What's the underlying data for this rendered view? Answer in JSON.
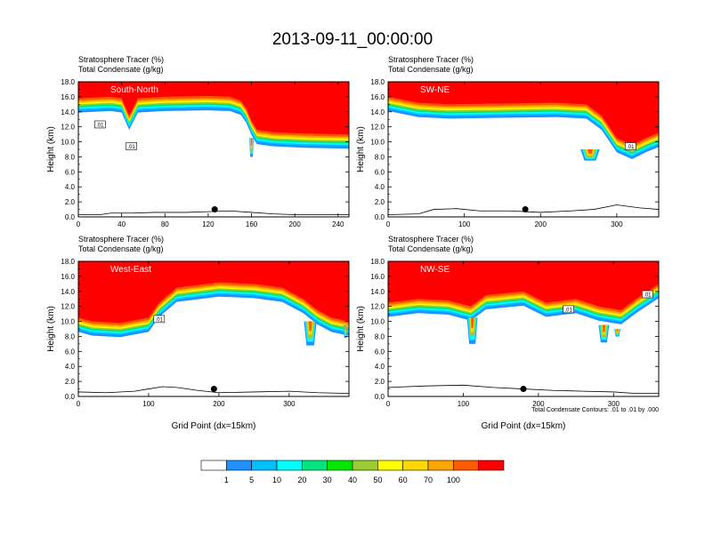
{
  "title": "2013-09-11_00:00:00",
  "colors": {
    "levels": [
      "#ffffff",
      "#1e90ff",
      "#00bfff",
      "#00ffff",
      "#00e57f",
      "#00e600",
      "#9acd32",
      "#ffff00",
      "#ffd700",
      "#ffa500",
      "#ff5a00",
      "#ff0000"
    ],
    "contour": "#000000",
    "terrain": "#000000"
  },
  "colorbar": {
    "labels": [
      "1",
      "5",
      "10",
      "20",
      "30",
      "40",
      "50",
      "60",
      "70",
      "100"
    ]
  },
  "contour_note": "Total Condensate Contours: .01 to .01 by .000",
  "chart_data": [
    {
      "type": "heatmap",
      "label": "South-North",
      "var_line1": "Stratosphere Tracer   (%)",
      "var_line2": "Total Condensate   (g/kg)",
      "ylabel": "Height (km)",
      "xlabel": "",
      "xlim": [
        0,
        250
      ],
      "ylim": [
        0,
        18
      ],
      "xticks": [
        "0",
        "40",
        "80",
        "120",
        "160",
        "200",
        "240"
      ],
      "xtick_values": [
        0,
        40,
        80,
        120,
        160,
        200,
        240
      ],
      "yticks": [
        "0.0",
        "2.0",
        "4.0",
        "6.0",
        "8.0",
        "10.0",
        "12.0",
        "14.0",
        "16.0",
        "18.0"
      ],
      "tropopause_km": [
        [
          0,
          14.8
        ],
        [
          30,
          15.0
        ],
        [
          40,
          14.8
        ],
        [
          47,
          12.5
        ],
        [
          55,
          14.8
        ],
        [
          80,
          15.0
        ],
        [
          120,
          15.1
        ],
        [
          140,
          15.0
        ],
        [
          150,
          14.5
        ],
        [
          155,
          13.5
        ],
        [
          160,
          11.8
        ],
        [
          165,
          10.6
        ],
        [
          180,
          10.3
        ],
        [
          210,
          10.1
        ],
        [
          250,
          10.0
        ]
      ],
      "streamers": [
        {
          "x": 160,
          "top": 10.5,
          "bottom": 8.0,
          "w": 4
        }
      ],
      "marker": {
        "x": 126,
        "y": 1.0
      },
      "terrain_km": [
        [
          0,
          0.3
        ],
        [
          20,
          0.3
        ],
        [
          30,
          0.5
        ],
        [
          50,
          0.5
        ],
        [
          70,
          0.6
        ],
        [
          100,
          0.6
        ],
        [
          120,
          0.7
        ],
        [
          140,
          0.8
        ],
        [
          160,
          0.6
        ],
        [
          180,
          0.4
        ],
        [
          200,
          0.3
        ],
        [
          250,
          0.3
        ]
      ],
      "contour_labels": [
        {
          "x": 20,
          "y": 12.2,
          "text": ".01"
        },
        {
          "x": 49,
          "y": 9.3,
          "text": ".01"
        }
      ]
    },
    {
      "type": "heatmap",
      "label": "SW-NE",
      "var_line1": "Stratosphere Tracer   (%)",
      "var_line2": "Total Condensate   (g/kg)",
      "ylabel": "Height (km)",
      "xlabel": "",
      "xlim": [
        0,
        355
      ],
      "ylim": [
        0,
        18
      ],
      "xticks": [
        "0",
        "100",
        "200",
        "300"
      ],
      "xtick_values": [
        0,
        100,
        200,
        300
      ],
      "yticks": [
        "0.0",
        "2.0",
        "4.0",
        "6.0",
        "8.0",
        "10.0",
        "12.0",
        "14.0",
        "16.0",
        "18.0"
      ],
      "tropopause_km": [
        [
          0,
          15.0
        ],
        [
          40,
          14.2
        ],
        [
          80,
          14.0
        ],
        [
          150,
          14.1
        ],
        [
          220,
          14.2
        ],
        [
          260,
          14.0
        ],
        [
          280,
          12.5
        ],
        [
          300,
          9.5
        ],
        [
          320,
          8.6
        ],
        [
          340,
          9.6
        ],
        [
          355,
          10.2
        ]
      ],
      "streamers": [
        {
          "x": 265,
          "top": 9.0,
          "bottom": 7.5,
          "w": 25
        }
      ],
      "marker": {
        "x": 180,
        "y": 1.0
      },
      "terrain_km": [
        [
          0,
          0.3
        ],
        [
          40,
          0.4
        ],
        [
          60,
          1.0
        ],
        [
          90,
          1.1
        ],
        [
          120,
          0.8
        ],
        [
          160,
          0.8
        ],
        [
          200,
          0.6
        ],
        [
          240,
          0.8
        ],
        [
          270,
          1.0
        ],
        [
          300,
          1.6
        ],
        [
          330,
          1.2
        ],
        [
          355,
          1.0
        ]
      ],
      "contour_labels": [
        {
          "x": 318,
          "y": 9.3,
          "text": ".01"
        }
      ]
    },
    {
      "type": "heatmap",
      "label": "West-East",
      "var_line1": "Stratosphere Tracer   (%)",
      "var_line2": "Total Condensate   (g/kg)",
      "ylabel": "Height (km)",
      "xlabel": "Grid Point (dx=15km)",
      "xlim": [
        0,
        385
      ],
      "ylim": [
        0,
        18
      ],
      "xticks": [
        "0",
        "100",
        "200",
        "300"
      ],
      "xtick_values": [
        0,
        100,
        200,
        300
      ],
      "yticks": [
        "0.0",
        "2.0",
        "4.0",
        "6.0",
        "8.0",
        "10.0",
        "12.0",
        "14.0",
        "16.0",
        "18.0"
      ],
      "tropopause_km": [
        [
          0,
          9.5
        ],
        [
          20,
          9.0
        ],
        [
          60,
          8.8
        ],
        [
          100,
          9.5
        ],
        [
          115,
          11.5
        ],
        [
          140,
          13.5
        ],
        [
          200,
          14.2
        ],
        [
          250,
          14.0
        ],
        [
          290,
          13.5
        ],
        [
          320,
          12.0
        ],
        [
          340,
          10.5
        ],
        [
          360,
          9.5
        ],
        [
          385,
          9.0
        ]
      ],
      "streamers": [
        {
          "x": 330,
          "top": 10.0,
          "bottom": 6.8,
          "w": 18
        },
        {
          "x": 380,
          "top": 9.5,
          "bottom": 7.8,
          "w": 6
        }
      ],
      "marker": {
        "x": 193,
        "y": 1.0
      },
      "terrain_km": [
        [
          0,
          0.6
        ],
        [
          40,
          0.5
        ],
        [
          80,
          0.7
        ],
        [
          100,
          1.0
        ],
        [
          120,
          1.3
        ],
        [
          140,
          1.2
        ],
        [
          170,
          0.8
        ],
        [
          200,
          0.5
        ],
        [
          250,
          0.6
        ],
        [
          300,
          0.7
        ],
        [
          340,
          0.5
        ],
        [
          385,
          0.4
        ]
      ],
      "contour_labels": [
        {
          "x": 115,
          "y": 10.2,
          "text": ".01"
        }
      ]
    },
    {
      "type": "heatmap",
      "label": "NW-SE",
      "var_line1": "Stratosphere Tracer   (%)",
      "var_line2": "Total Condensate   (g/kg)",
      "ylabel": "Height (km)",
      "xlabel": "Grid Point (dx=15km)",
      "xlim": [
        0,
        360
      ],
      "ylim": [
        0,
        18
      ],
      "xticks": [
        "0",
        "100",
        "200",
        "300"
      ],
      "xtick_values": [
        0,
        100,
        200,
        300
      ],
      "yticks": [
        "0.0",
        "2.0",
        "4.0",
        "6.0",
        "8.0",
        "10.0",
        "12.0",
        "14.0",
        "16.0",
        "18.0"
      ],
      "tropopause_km": [
        [
          0,
          11.5
        ],
        [
          40,
          12.0
        ],
        [
          80,
          11.8
        ],
        [
          110,
          11.0
        ],
        [
          130,
          12.5
        ],
        [
          180,
          13.0
        ],
        [
          210,
          11.5
        ],
        [
          250,
          12.0
        ],
        [
          280,
          11.0
        ],
        [
          310,
          10.5
        ],
        [
          330,
          12.0
        ],
        [
          360,
          14.0
        ]
      ],
      "streamers": [
        {
          "x": 112,
          "top": 10.5,
          "bottom": 7.0,
          "w": 14
        },
        {
          "x": 287,
          "top": 9.5,
          "bottom": 7.2,
          "w": 14
        },
        {
          "x": 305,
          "top": 9.0,
          "bottom": 8.0,
          "w": 8
        }
      ],
      "marker": {
        "x": 180,
        "y": 1.0
      },
      "terrain_km": [
        [
          0,
          1.2
        ],
        [
          50,
          1.4
        ],
        [
          100,
          1.5
        ],
        [
          140,
          1.2
        ],
        [
          180,
          1.0
        ],
        [
          220,
          0.8
        ],
        [
          260,
          0.7
        ],
        [
          300,
          0.6
        ],
        [
          330,
          0.4
        ],
        [
          360,
          0.4
        ]
      ],
      "contour_labels": [
        {
          "x": 240,
          "y": 11.5,
          "text": ".01"
        },
        {
          "x": 345,
          "y": 13.5,
          "text": ".01"
        }
      ]
    }
  ]
}
